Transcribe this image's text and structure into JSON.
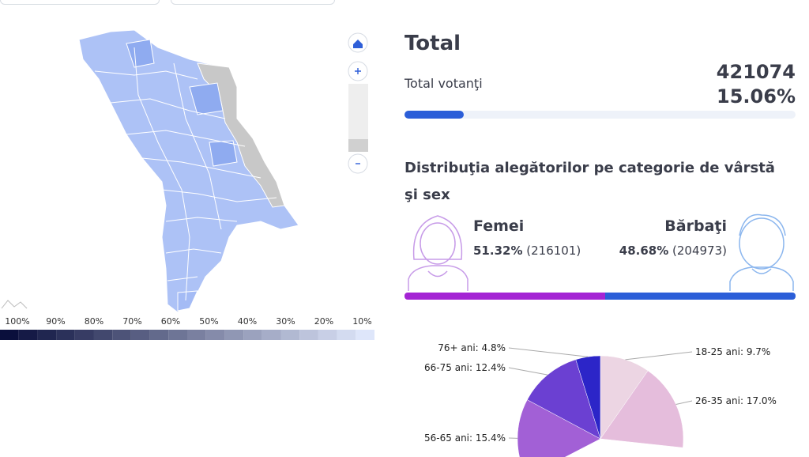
{
  "map_legend": {
    "labels": [
      "100%",
      "90%",
      "80%",
      "70%",
      "60%",
      "50%",
      "40%",
      "30%",
      "20%",
      "10%"
    ]
  },
  "total": {
    "title": "Total",
    "label": "Total votanţi",
    "voters": 421074,
    "percent": 15.06,
    "percent_label": "15.06%"
  },
  "distribution": {
    "title": "Distribuţia alegătorilor pe categorie de vârstă şi sex",
    "female": {
      "name": "Femei",
      "percent": 51.32,
      "percent_label": "51.32%",
      "count_label": "(216101)"
    },
    "male": {
      "name": "Bărbaţi",
      "percent": 48.68,
      "percent_label": "48.68%",
      "count_label": "(204973)"
    }
  },
  "chart_data": {
    "type": "pie",
    "values": [
      9.7,
      17.0,
      15.4,
      12.4,
      4.8
    ],
    "value_labels": [
      "18-25 ani: 9.7%",
      "26-35 ani: 17.0%",
      "56-65 ani: 15.4%",
      "66-75 ani: 12.4%",
      "76+ ani: 4.8%"
    ],
    "colors": [
      "#ecd5e3",
      "#e5bddc",
      "#a260d6",
      "#6b40d2",
      "#2c25c8"
    ]
  }
}
